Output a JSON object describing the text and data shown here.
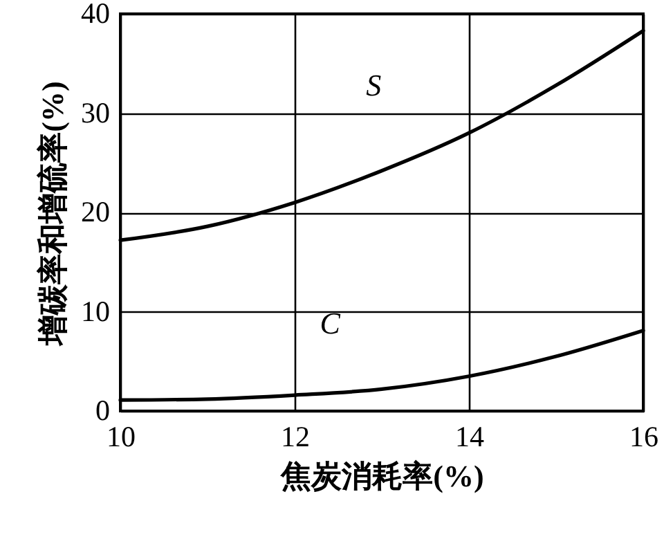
{
  "chart_data": {
    "type": "line",
    "xlabel": "焦炭消耗率(%)",
    "ylabel": "增碳率和增硫率(%)",
    "xlim": [
      10,
      16
    ],
    "xticks": [
      10,
      12,
      14,
      16
    ],
    "ylim": [
      0,
      40
    ],
    "yticks": [
      0,
      10,
      20,
      30,
      40
    ],
    "grid": true,
    "line_style": "solid",
    "x": [
      10,
      11,
      12,
      13,
      14,
      15,
      16
    ],
    "series": [
      {
        "color": "#000000",
        "values": [
          17.2,
          18.6,
          21,
          24.2,
          28,
          32.8,
          38.3
        ]
      },
      {
        "color": "#000000",
        "values": [
          1.1,
          1.2,
          1.6,
          2.2,
          3.5,
          5.5,
          8.1
        ]
      }
    ],
    "annotations": [
      {
        "text": "S",
        "x": 13.7,
        "y": 26.5
      },
      {
        "text": "C",
        "x": 13.2,
        "y": 2.5
      }
    ]
  }
}
